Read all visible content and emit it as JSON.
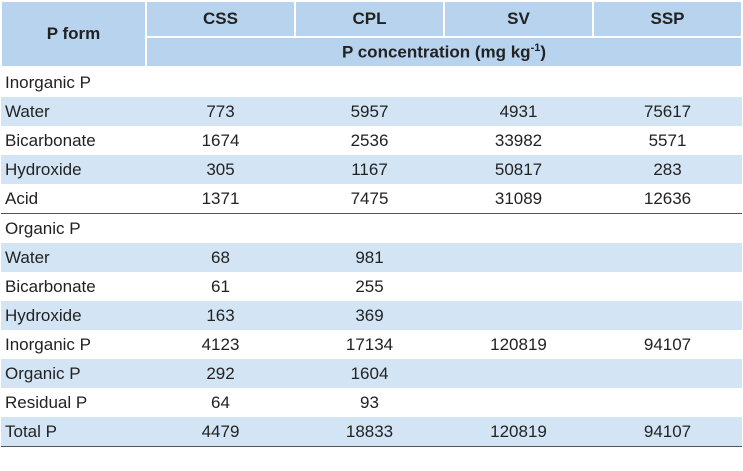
{
  "header": {
    "row_label": "P form",
    "columns": [
      "CSS",
      "CPL",
      "SV",
      "SSP"
    ],
    "unit_label": {
      "text": "P concentration (mg kg",
      "superscript": "-1",
      "tail": ")"
    }
  },
  "rows": [
    {
      "label": "Inorganic P",
      "section": true,
      "values": []
    },
    {
      "label": "Water",
      "values": [
        773,
        5957,
        4931,
        75617
      ]
    },
    {
      "label": "Bicarbonate",
      "values": [
        1674,
        2536,
        33982,
        5571
      ]
    },
    {
      "label": "Hydroxide",
      "values": [
        305,
        1167,
        50817,
        283
      ]
    },
    {
      "label": "Acid",
      "values": [
        1371,
        7475,
        31089,
        12636
      ]
    },
    {
      "label": "Organic P",
      "section": true,
      "values": []
    },
    {
      "label": "Water",
      "values": [
        68,
        981
      ]
    },
    {
      "label": "Bicarbonate",
      "values": [
        61,
        255
      ]
    },
    {
      "label": "Hydroxide",
      "values": [
        163,
        369
      ]
    },
    {
      "label": "Inorganic P",
      "values": [
        4123,
        17134,
        120819,
        94107
      ]
    },
    {
      "label": "Organic P",
      "values": [
        292,
        1604
      ]
    },
    {
      "label": "Residual P",
      "values": [
        64,
        93
      ]
    },
    {
      "label": "Total P",
      "values": [
        4479,
        18833,
        120819,
        94107
      ]
    }
  ]
}
